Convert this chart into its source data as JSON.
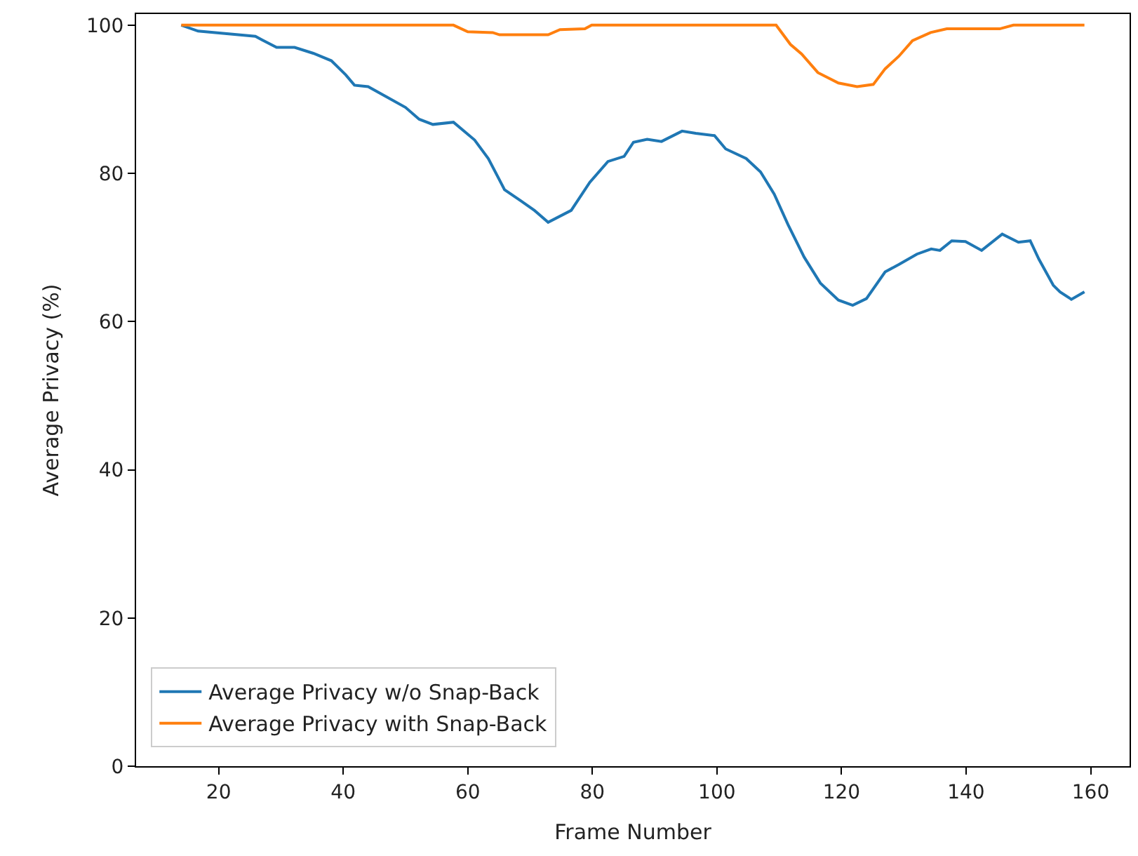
{
  "chart_data": {
    "type": "line",
    "xlabel": "Frame Number",
    "ylabel": "Average Privacy (%)",
    "xlim": [
      6.75,
      166.25
    ],
    "xticks": [
      20,
      40,
      60,
      80,
      100,
      120,
      140,
      160
    ],
    "ylim": [
      0,
      101.5
    ],
    "yticks": [
      0,
      20,
      40,
      60,
      80,
      100
    ],
    "legend": "bottom left",
    "marker": "none",
    "line_style": "solid",
    "series": [
      {
        "name": "Average Privacy w/o Snap-Back",
        "color": "#1f77b4",
        "x": [
          14,
          16.7,
          25.9,
          27,
          29.3,
          32.2,
          35.2,
          38.1,
          40.4,
          41.8,
          44,
          47,
          50,
          52.2,
          54.4,
          57.7,
          61.1,
          63.3,
          65.9,
          68.5,
          70.7,
          72.9,
          76.6,
          79.6,
          82.5,
          85.1,
          86.6,
          88.8,
          91.1,
          94.4,
          96.6,
          99.6,
          101.4,
          104.7,
          107,
          109.2,
          111.4,
          114,
          116.6,
          119.5,
          121.8,
          124,
          127,
          129.2,
          132.1,
          134.4,
          135.8,
          137.7,
          139.9,
          142.5,
          145.8,
          148.4,
          150.3,
          151.7,
          154,
          155.1,
          156.9,
          159
        ],
        "values": [
          100,
          99.2,
          98.5,
          98,
          97,
          97,
          96.2,
          95.2,
          93.3,
          91.9,
          91.7,
          90.3,
          88.9,
          87.3,
          86.6,
          86.9,
          84.5,
          82,
          77.8,
          76.3,
          75,
          73.4,
          75,
          78.8,
          81.6,
          82.3,
          84.2,
          84.6,
          84.3,
          85.7,
          85.4,
          85.1,
          83.3,
          82,
          80.2,
          77.2,
          73.1,
          68.7,
          65.2,
          62.9,
          62.2,
          63.1,
          66.7,
          67.7,
          69.1,
          69.8,
          69.6,
          70.9,
          70.8,
          69.6,
          71.8,
          70.7,
          70.9,
          68.4,
          64.9,
          64,
          63,
          64
        ]
      },
      {
        "name": "Average Privacy with Snap-Back",
        "color": "#ff7f0e",
        "x": [
          14,
          57.7,
          60,
          64,
          65.1,
          72.9,
          74.8,
          78.8,
          79.9,
          109.5,
          111.8,
          113.6,
          116.2,
          119.5,
          122.5,
          125.1,
          127,
          129.2,
          131.4,
          134.3,
          136.9,
          145.4,
          147.6,
          159
        ],
        "values": [
          100,
          100,
          99.1,
          99,
          98.7,
          98.7,
          99.4,
          99.5,
          100,
          100,
          97.4,
          96.1,
          93.6,
          92.2,
          91.7,
          92,
          94.1,
          95.8,
          97.9,
          99,
          99.5,
          99.5,
          100,
          100
        ]
      }
    ]
  }
}
